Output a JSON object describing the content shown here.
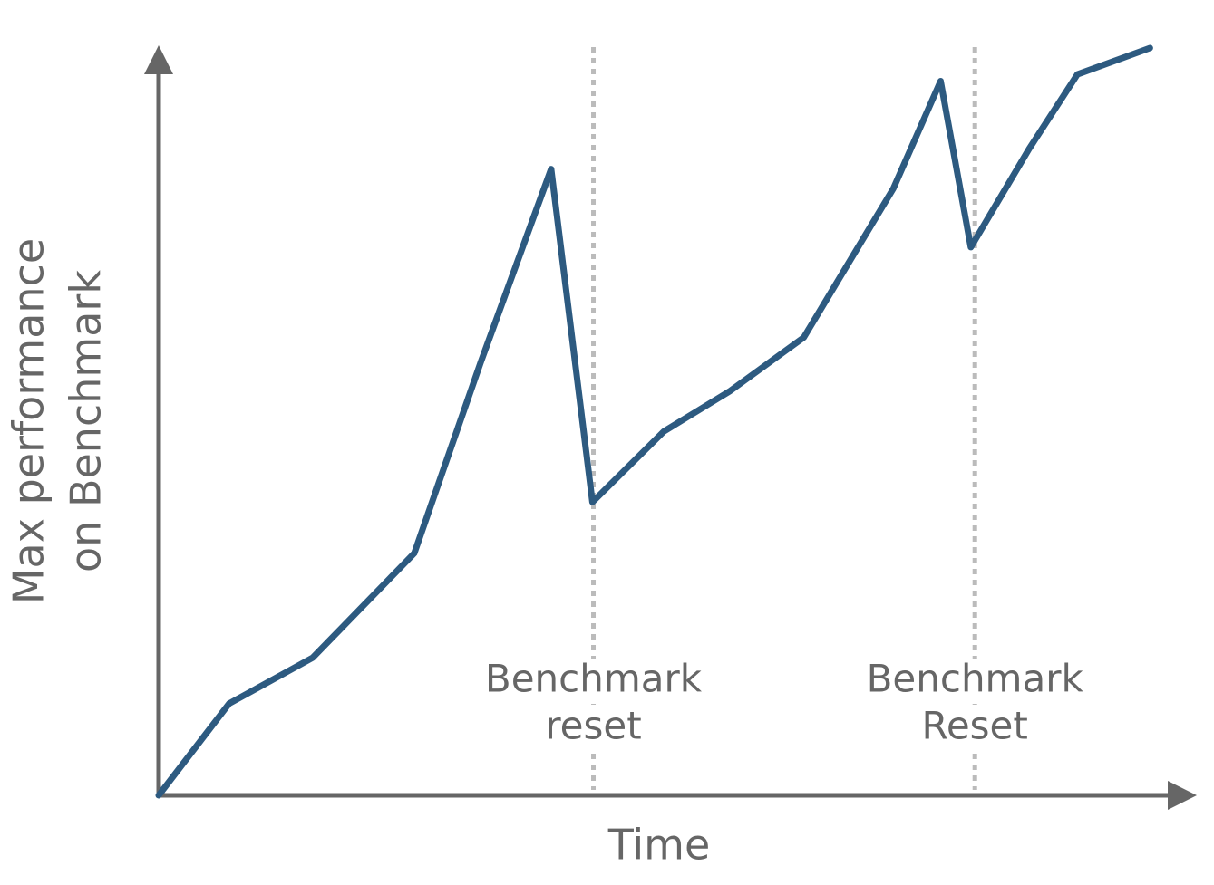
{
  "chart_data": {
    "type": "line",
    "xlabel": "Time",
    "ylabel": [
      "Max performance",
      "on Benchmark"
    ],
    "x": [
      0,
      7.0,
      15.3,
      25.4,
      32.0,
      39.0,
      43.1,
      50.2,
      56.8,
      64.1,
      73.0,
      77.7,
      80.7,
      86.5,
      91.3,
      98.5
    ],
    "values": [
      0,
      12.2,
      18.3,
      32.2,
      57.6,
      83.3,
      39.0,
      48.4,
      53.8,
      60.9,
      80.7,
      95.0,
      72.9,
      86.0,
      95.9,
      99.4
    ],
    "color": "#2d5a80",
    "xlim": [
      0,
      100
    ],
    "ylim": [
      0,
      100
    ],
    "annotations": [
      {
        "x": 43.2,
        "lines": [
          "Benchmark",
          "reset"
        ]
      },
      {
        "x": 81.1,
        "lines": [
          "Benchmark",
          "Reset"
        ]
      }
    ]
  }
}
